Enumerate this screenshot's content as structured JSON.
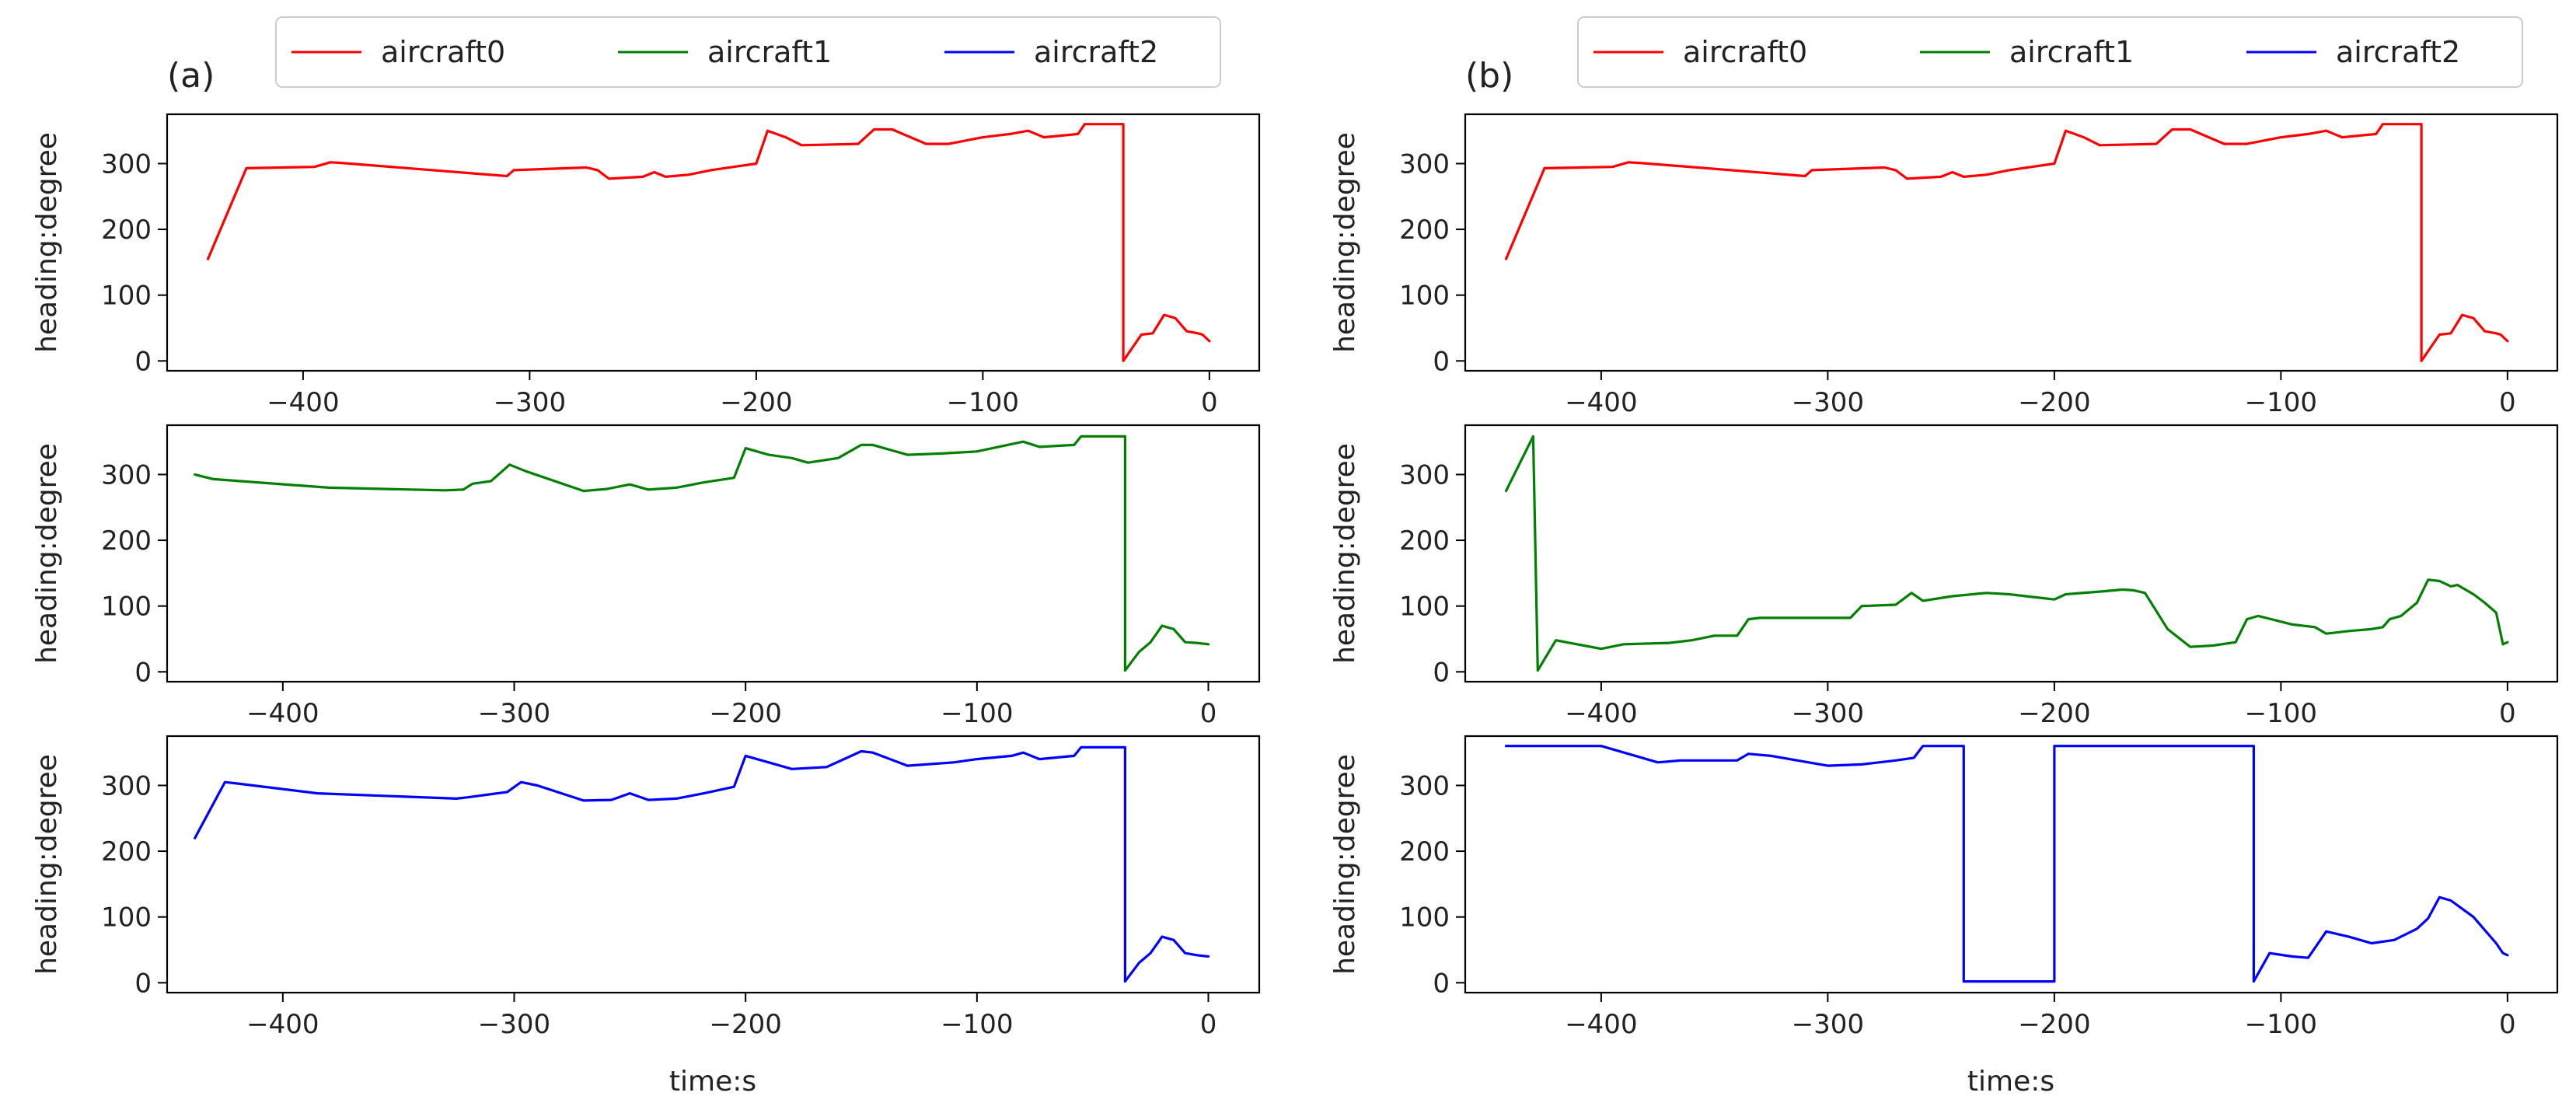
{
  "chart_data": [
    {
      "id": "a",
      "panel_label": "(a)",
      "legend": [
        {
          "name": "aircraft0",
          "color": "#ff0000"
        },
        {
          "name": "aircraft1",
          "color": "#008000"
        },
        {
          "name": "aircraft2",
          "color": "#0000ff"
        }
      ],
      "xlabel": "time:s",
      "xticks": [
        -400,
        -300,
        -200,
        -100,
        0
      ],
      "subplots": [
        {
          "type": "line",
          "series_name": "aircraft0",
          "color": "#ff0000",
          "ylabel": "heading:degree",
          "xlim": [
            -460,
            22
          ],
          "ylim": [
            -15,
            375
          ],
          "yticks": [
            0,
            100,
            200,
            300
          ],
          "points": [
            [
              -442,
              155
            ],
            [
              -425,
              293
            ],
            [
              -395,
              295
            ],
            [
              -388,
              302
            ],
            [
              -383,
              301
            ],
            [
              -310,
              281
            ],
            [
              -307,
              290
            ],
            [
              -275,
              294
            ],
            [
              -270,
              290
            ],
            [
              -265,
              277
            ],
            [
              -250,
              280
            ],
            [
              -245,
              287
            ],
            [
              -240,
              280
            ],
            [
              -230,
              283
            ],
            [
              -220,
              290
            ],
            [
              -210,
              295
            ],
            [
              -200,
              300
            ],
            [
              -195,
              350
            ],
            [
              -187,
              340
            ],
            [
              -180,
              328
            ],
            [
              -155,
              330
            ],
            [
              -148,
              352
            ],
            [
              -140,
              352
            ],
            [
              -125,
              330
            ],
            [
              -115,
              330
            ],
            [
              -100,
              340
            ],
            [
              -88,
              345
            ],
            [
              -80,
              350
            ],
            [
              -73,
              340
            ],
            [
              -58,
              345
            ],
            [
              -55,
              360
            ],
            [
              -38,
              360
            ],
            [
              -38,
              0
            ],
            [
              -30,
              40
            ],
            [
              -25,
              42
            ],
            [
              -20,
              70
            ],
            [
              -15,
              65
            ],
            [
              -10,
              45
            ],
            [
              -5,
              42
            ],
            [
              -3,
              40
            ],
            [
              0,
              30
            ]
          ]
        },
        {
          "type": "line",
          "series_name": "aircraft1",
          "color": "#008000",
          "ylabel": "heading:degree",
          "xlim": [
            -450,
            22
          ],
          "ylim": [
            -15,
            375
          ],
          "yticks": [
            0,
            100,
            200,
            300
          ],
          "points": [
            [
              -438,
              300
            ],
            [
              -430,
              293
            ],
            [
              -380,
              280
            ],
            [
              -330,
              276
            ],
            [
              -322,
              277
            ],
            [
              -318,
              286
            ],
            [
              -310,
              290
            ],
            [
              -302,
              315
            ],
            [
              -295,
              305
            ],
            [
              -270,
              275
            ],
            [
              -260,
              278
            ],
            [
              -250,
              285
            ],
            [
              -242,
              277
            ],
            [
              -230,
              280
            ],
            [
              -218,
              288
            ],
            [
              -205,
              295
            ],
            [
              -200,
              340
            ],
            [
              -190,
              330
            ],
            [
              -180,
              325
            ],
            [
              -173,
              318
            ],
            [
              -160,
              325
            ],
            [
              -150,
              345
            ],
            [
              -145,
              345
            ],
            [
              -130,
              330
            ],
            [
              -115,
              332
            ],
            [
              -100,
              335
            ],
            [
              -80,
              350
            ],
            [
              -73,
              342
            ],
            [
              -58,
              345
            ],
            [
              -55,
              358
            ],
            [
              -36,
              358
            ],
            [
              -36,
              2
            ],
            [
              -30,
              30
            ],
            [
              -25,
              45
            ],
            [
              -20,
              70
            ],
            [
              -15,
              65
            ],
            [
              -10,
              45
            ],
            [
              -5,
              44
            ],
            [
              0,
              42
            ]
          ]
        },
        {
          "type": "line",
          "series_name": "aircraft2",
          "color": "#0000ff",
          "ylabel": "heading:degree",
          "xlim": [
            -450,
            22
          ],
          "ylim": [
            -15,
            375
          ],
          "yticks": [
            0,
            100,
            200,
            300
          ],
          "points": [
            [
              -438,
              220
            ],
            [
              -425,
              305
            ],
            [
              -420,
              303
            ],
            [
              -385,
              288
            ],
            [
              -325,
              280
            ],
            [
              -320,
              282
            ],
            [
              -303,
              290
            ],
            [
              -297,
              305
            ],
            [
              -290,
              300
            ],
            [
              -270,
              277
            ],
            [
              -258,
              278
            ],
            [
              -250,
              288
            ],
            [
              -242,
              278
            ],
            [
              -230,
              280
            ],
            [
              -218,
              288
            ],
            [
              -205,
              298
            ],
            [
              -200,
              345
            ],
            [
              -190,
              335
            ],
            [
              -180,
              325
            ],
            [
              -165,
              328
            ],
            [
              -150,
              352
            ],
            [
              -145,
              350
            ],
            [
              -130,
              330
            ],
            [
              -110,
              335
            ],
            [
              -100,
              340
            ],
            [
              -85,
              345
            ],
            [
              -80,
              350
            ],
            [
              -73,
              340
            ],
            [
              -58,
              345
            ],
            [
              -55,
              358
            ],
            [
              -36,
              358
            ],
            [
              -36,
              2
            ],
            [
              -30,
              30
            ],
            [
              -25,
              45
            ],
            [
              -20,
              70
            ],
            [
              -15,
              65
            ],
            [
              -10,
              45
            ],
            [
              -5,
              42
            ],
            [
              0,
              40
            ]
          ]
        }
      ]
    },
    {
      "id": "b",
      "panel_label": "(b)",
      "legend": [
        {
          "name": "aircraft0",
          "color": "#ff0000"
        },
        {
          "name": "aircraft1",
          "color": "#008000"
        },
        {
          "name": "aircraft2",
          "color": "#0000ff"
        }
      ],
      "xlabel": "time:s",
      "xticks": [
        -400,
        -300,
        -200,
        -100,
        0
      ],
      "subplots": [
        {
          "type": "line",
          "series_name": "aircraft0",
          "color": "#ff0000",
          "ylabel": "heading:degree",
          "xlim": [
            -460,
            22
          ],
          "ylim": [
            -15,
            375
          ],
          "yticks": [
            0,
            100,
            200,
            300
          ],
          "points": [
            [
              -442,
              155
            ],
            [
              -425,
              293
            ],
            [
              -395,
              295
            ],
            [
              -388,
              302
            ],
            [
              -383,
              301
            ],
            [
              -310,
              281
            ],
            [
              -307,
              290
            ],
            [
              -275,
              294
            ],
            [
              -270,
              290
            ],
            [
              -265,
              277
            ],
            [
              -250,
              280
            ],
            [
              -245,
              287
            ],
            [
              -240,
              280
            ],
            [
              -230,
              283
            ],
            [
              -220,
              290
            ],
            [
              -210,
              295
            ],
            [
              -200,
              300
            ],
            [
              -195,
              350
            ],
            [
              -187,
              340
            ],
            [
              -180,
              328
            ],
            [
              -155,
              330
            ],
            [
              -148,
              352
            ],
            [
              -140,
              352
            ],
            [
              -125,
              330
            ],
            [
              -115,
              330
            ],
            [
              -100,
              340
            ],
            [
              -88,
              345
            ],
            [
              -80,
              350
            ],
            [
              -73,
              340
            ],
            [
              -58,
              345
            ],
            [
              -55,
              360
            ],
            [
              -38,
              360
            ],
            [
              -38,
              0
            ],
            [
              -30,
              40
            ],
            [
              -25,
              42
            ],
            [
              -20,
              70
            ],
            [
              -15,
              65
            ],
            [
              -10,
              45
            ],
            [
              -5,
              42
            ],
            [
              -3,
              40
            ],
            [
              0,
              30
            ]
          ]
        },
        {
          "type": "line",
          "series_name": "aircraft1",
          "color": "#008000",
          "ylabel": "heading:degree",
          "xlim": [
            -460,
            22
          ],
          "ylim": [
            -15,
            375
          ],
          "yticks": [
            0,
            100,
            200,
            300
          ],
          "points": [
            [
              -442,
              275
            ],
            [
              -430,
              358
            ],
            [
              -428,
              2
            ],
            [
              -420,
              48
            ],
            [
              -400,
              35
            ],
            [
              -390,
              42
            ],
            [
              -370,
              44
            ],
            [
              -360,
              48
            ],
            [
              -350,
              55
            ],
            [
              -340,
              55
            ],
            [
              -335,
              80
            ],
            [
              -330,
              82
            ],
            [
              -290,
              82
            ],
            [
              -285,
              100
            ],
            [
              -270,
              102
            ],
            [
              -263,
              120
            ],
            [
              -258,
              108
            ],
            [
              -245,
              115
            ],
            [
              -230,
              120
            ],
            [
              -220,
              118
            ],
            [
              -205,
              112
            ],
            [
              -200,
              110
            ],
            [
              -195,
              118
            ],
            [
              -180,
              122
            ],
            [
              -170,
              125
            ],
            [
              -165,
              124
            ],
            [
              -160,
              120
            ],
            [
              -150,
              65
            ],
            [
              -140,
              38
            ],
            [
              -130,
              40
            ],
            [
              -120,
              45
            ],
            [
              -115,
              80
            ],
            [
              -110,
              85
            ],
            [
              -95,
              72
            ],
            [
              -85,
              68
            ],
            [
              -80,
              58
            ],
            [
              -70,
              62
            ],
            [
              -60,
              65
            ],
            [
              -55,
              68
            ],
            [
              -52,
              80
            ],
            [
              -47,
              85
            ],
            [
              -40,
              105
            ],
            [
              -35,
              140
            ],
            [
              -30,
              138
            ],
            [
              -25,
              130
            ],
            [
              -22,
              132
            ],
            [
              -15,
              118
            ],
            [
              -10,
              105
            ],
            [
              -5,
              90
            ],
            [
              -2,
              42
            ],
            [
              0,
              45
            ]
          ]
        },
        {
          "type": "line",
          "series_name": "aircraft2",
          "color": "#0000ff",
          "ylabel": "heading:degree",
          "xlim": [
            -460,
            22
          ],
          "ylim": [
            -15,
            375
          ],
          "yticks": [
            0,
            100,
            200,
            300
          ],
          "points": [
            [
              -442,
              360
            ],
            [
              -400,
              360
            ],
            [
              -375,
              335
            ],
            [
              -365,
              338
            ],
            [
              -355,
              338
            ],
            [
              -340,
              338
            ],
            [
              -335,
              348
            ],
            [
              -325,
              345
            ],
            [
              -300,
              330
            ],
            [
              -285,
              332
            ],
            [
              -270,
              338
            ],
            [
              -262,
              342
            ],
            [
              -258,
              360
            ],
            [
              -240,
              360
            ],
            [
              -240,
              2
            ],
            [
              -200,
              2
            ],
            [
              -200,
              360
            ],
            [
              -112,
              360
            ],
            [
              -112,
              2
            ],
            [
              -105,
              45
            ],
            [
              -95,
              40
            ],
            [
              -88,
              38
            ],
            [
              -80,
              78
            ],
            [
              -70,
              70
            ],
            [
              -60,
              60
            ],
            [
              -50,
              65
            ],
            [
              -40,
              82
            ],
            [
              -35,
              98
            ],
            [
              -30,
              130
            ],
            [
              -25,
              125
            ],
            [
              -15,
              100
            ],
            [
              -5,
              60
            ],
            [
              -2,
              45
            ],
            [
              0,
              42
            ]
          ]
        }
      ]
    }
  ]
}
